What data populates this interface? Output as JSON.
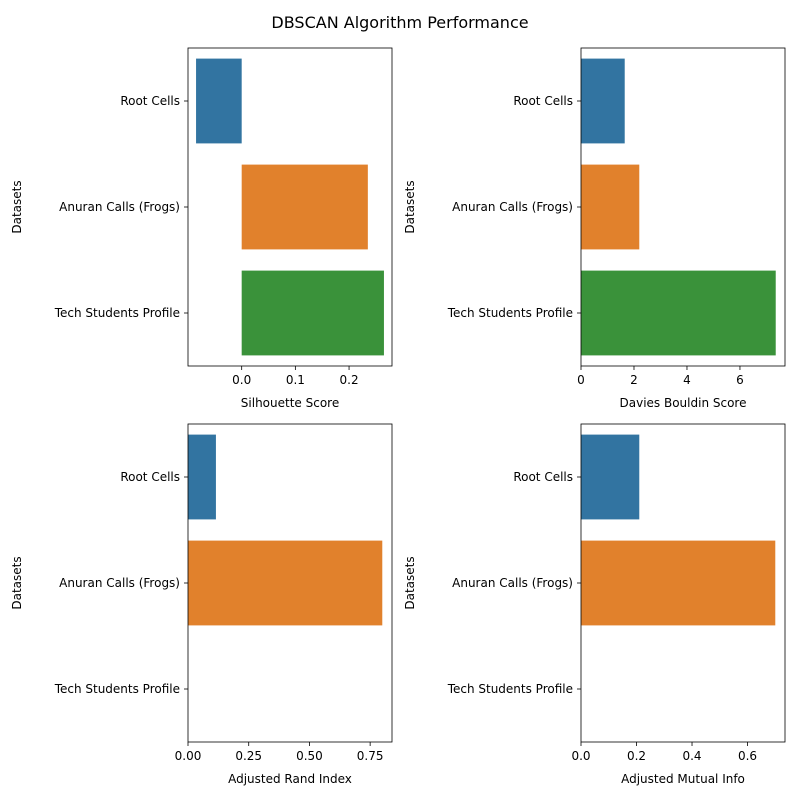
{
  "figure": {
    "title": "DBSCAN Algorithm Performance"
  },
  "chart_data": [
    {
      "type": "bar",
      "orientation": "horizontal",
      "ylabel": "Datasets",
      "xlabel": "Silhouette Score",
      "categories": [
        "Root Cells",
        "Anuran Calls (Frogs)",
        "Tech Students Profile"
      ],
      "values": [
        -0.085,
        0.235,
        0.265
      ],
      "colors": [
        "#3274a1",
        "#e1812c",
        "#3a923a"
      ],
      "xlim": [
        -0.1,
        0.28
      ],
      "xticks": [
        0.0,
        0.1,
        0.2
      ],
      "xtick_labels": [
        "0.0",
        "0.1",
        "0.2"
      ]
    },
    {
      "type": "bar",
      "orientation": "horizontal",
      "ylabel": "Datasets",
      "xlabel": "Davies Bouldin Score",
      "categories": [
        "Root Cells",
        "Anuran Calls (Frogs)",
        "Tech Students Profile"
      ],
      "values": [
        1.65,
        2.2,
        7.35
      ],
      "colors": [
        "#3274a1",
        "#e1812c",
        "#3a923a"
      ],
      "xlim": [
        0,
        7.7
      ],
      "xticks": [
        0,
        2,
        4,
        6
      ],
      "xtick_labels": [
        "0",
        "2",
        "4",
        "6"
      ]
    },
    {
      "type": "bar",
      "orientation": "horizontal",
      "ylabel": "Datasets",
      "xlabel": "Adjusted Rand Index",
      "categories": [
        "Root Cells",
        "Anuran Calls (Frogs)",
        "Tech Students Profile"
      ],
      "values": [
        0.115,
        0.8,
        null
      ],
      "colors": [
        "#3274a1",
        "#e1812c",
        "#3a923a"
      ],
      "xlim": [
        0,
        0.84
      ],
      "xticks": [
        0.0,
        0.25,
        0.5,
        0.75
      ],
      "xtick_labels": [
        "0.00",
        "0.25",
        "0.50",
        "0.75"
      ]
    },
    {
      "type": "bar",
      "orientation": "horizontal",
      "ylabel": "Datasets",
      "xlabel": "Adjusted Mutual Info",
      "categories": [
        "Root Cells",
        "Anuran Calls (Frogs)",
        "Tech Students Profile"
      ],
      "values": [
        0.21,
        0.7,
        null
      ],
      "colors": [
        "#3274a1",
        "#e1812c",
        "#3a923a"
      ],
      "xlim": [
        0,
        0.735
      ],
      "xticks": [
        0.0,
        0.2,
        0.4,
        0.6
      ],
      "xtick_labels": [
        "0.0",
        "0.2",
        "0.4",
        "0.6"
      ]
    }
  ]
}
